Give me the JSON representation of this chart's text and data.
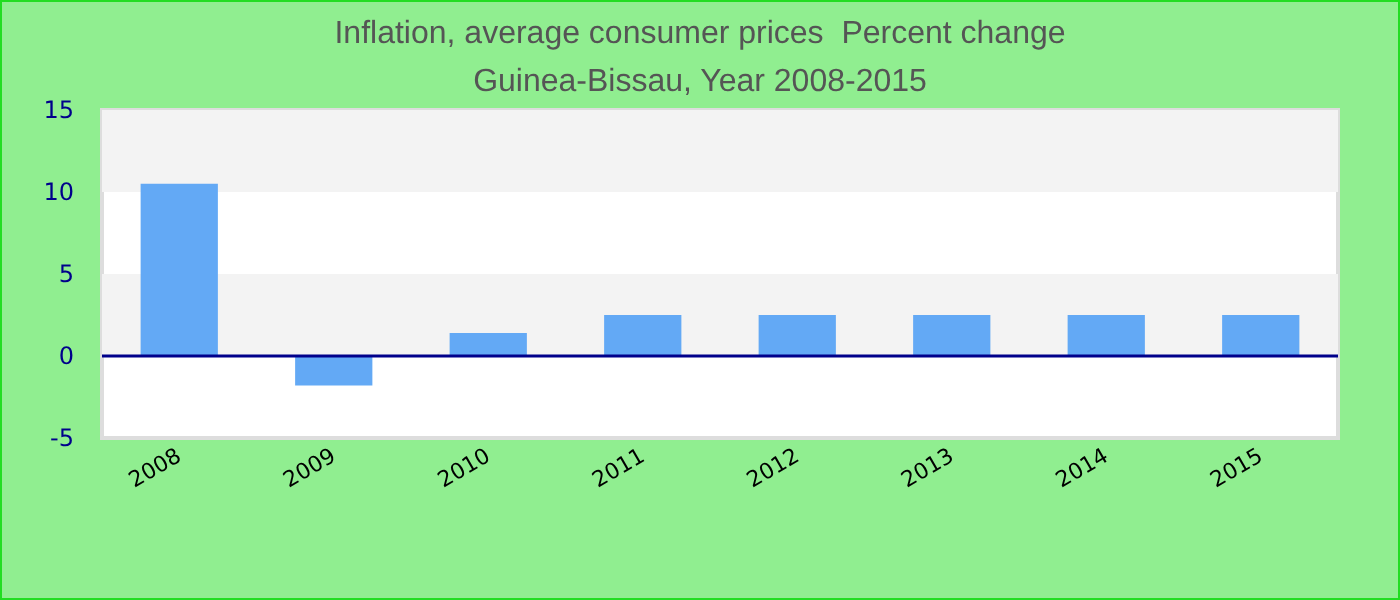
{
  "chart_data": {
    "type": "bar",
    "title": "Inflation, average consumer prices  Percent change",
    "subtitle": "Guinea-Bissau, Year 2008-2015",
    "categories": [
      "2008",
      "2009",
      "2010",
      "2011",
      "2012",
      "2013",
      "2014",
      "2015"
    ],
    "values": [
      10.5,
      -1.8,
      1.4,
      2.5,
      2.5,
      2.5,
      2.5,
      2.5
    ],
    "color": "#63a9f5",
    "ylim": [
      -5,
      15
    ],
    "yticks": [
      -5,
      0,
      5,
      10,
      15
    ],
    "bands": [
      {
        "axis": "y",
        "from": 10,
        "to": 15,
        "color": "#f3f3f3"
      },
      {
        "axis": "y",
        "from": 0,
        "to": 5,
        "color": "#f3f3f3"
      }
    ],
    "ref_lines": [
      {
        "axis": "y",
        "value": 0,
        "color": "#00008b"
      }
    ]
  }
}
